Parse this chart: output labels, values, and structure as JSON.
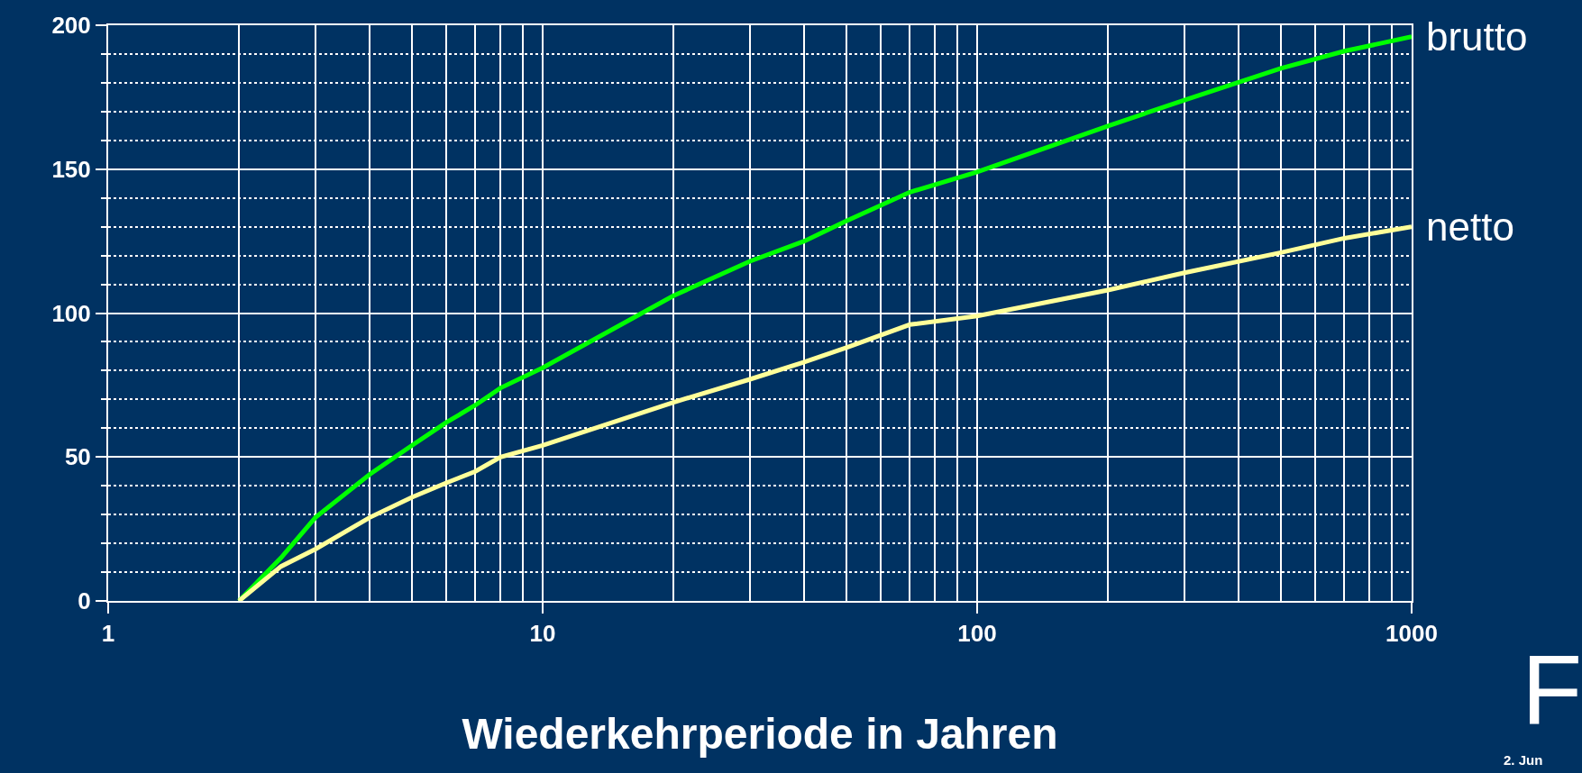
{
  "chart_data": {
    "type": "line",
    "xlabel": "Wiederkehrperiode in Jahren",
    "x": [
      2,
      2.5,
      3,
      4,
      5,
      6,
      7,
      8,
      10,
      20,
      30,
      40,
      50,
      70,
      100,
      200,
      300,
      500,
      700,
      1000
    ],
    "series": [
      {
        "name": "brutto",
        "color": "#00ff00",
        "values": [
          0,
          15,
          29,
          44,
          54,
          62,
          68,
          74,
          81,
          106,
          118,
          125,
          132,
          142,
          149,
          165,
          174,
          185,
          191,
          196
        ]
      },
      {
        "name": "netto",
        "color": "#ffff99",
        "values": [
          0,
          12,
          18,
          29,
          36,
          41,
          45,
          50,
          54,
          69,
          77,
          83,
          88,
          96,
          99,
          108,
          114,
          121,
          126,
          130
        ]
      }
    ],
    "log": "x",
    "xlim": [
      1,
      1000
    ],
    "xticks": [
      1,
      10,
      100,
      1000
    ],
    "ylim": [
      0,
      200
    ],
    "yticks": [
      0,
      {
        "value": 10,
        "label": null
      },
      {
        "value": 20,
        "label": null
      },
      {
        "value": 30,
        "label": null
      },
      {
        "value": 40,
        "label": null
      },
      50,
      {
        "value": 60,
        "label": null
      },
      {
        "value": 70,
        "label": null
      },
      {
        "value": 80,
        "label": null
      },
      {
        "value": 90,
        "label": null
      },
      100,
      {
        "value": 110,
        "label": null
      },
      {
        "value": 120,
        "label": null
      },
      {
        "value": 130,
        "label": null
      },
      {
        "value": 140,
        "label": null
      },
      150,
      {
        "value": 160,
        "label": null
      },
      {
        "value": 170,
        "label": null
      },
      {
        "value": 180,
        "label": null
      },
      {
        "value": 190,
        "label": null
      },
      200
    ],
    "grid": true,
    "legend": false,
    "marker": "none",
    "line_style": "solid",
    "annotations": [
      "F",
      "2. Jun"
    ]
  }
}
